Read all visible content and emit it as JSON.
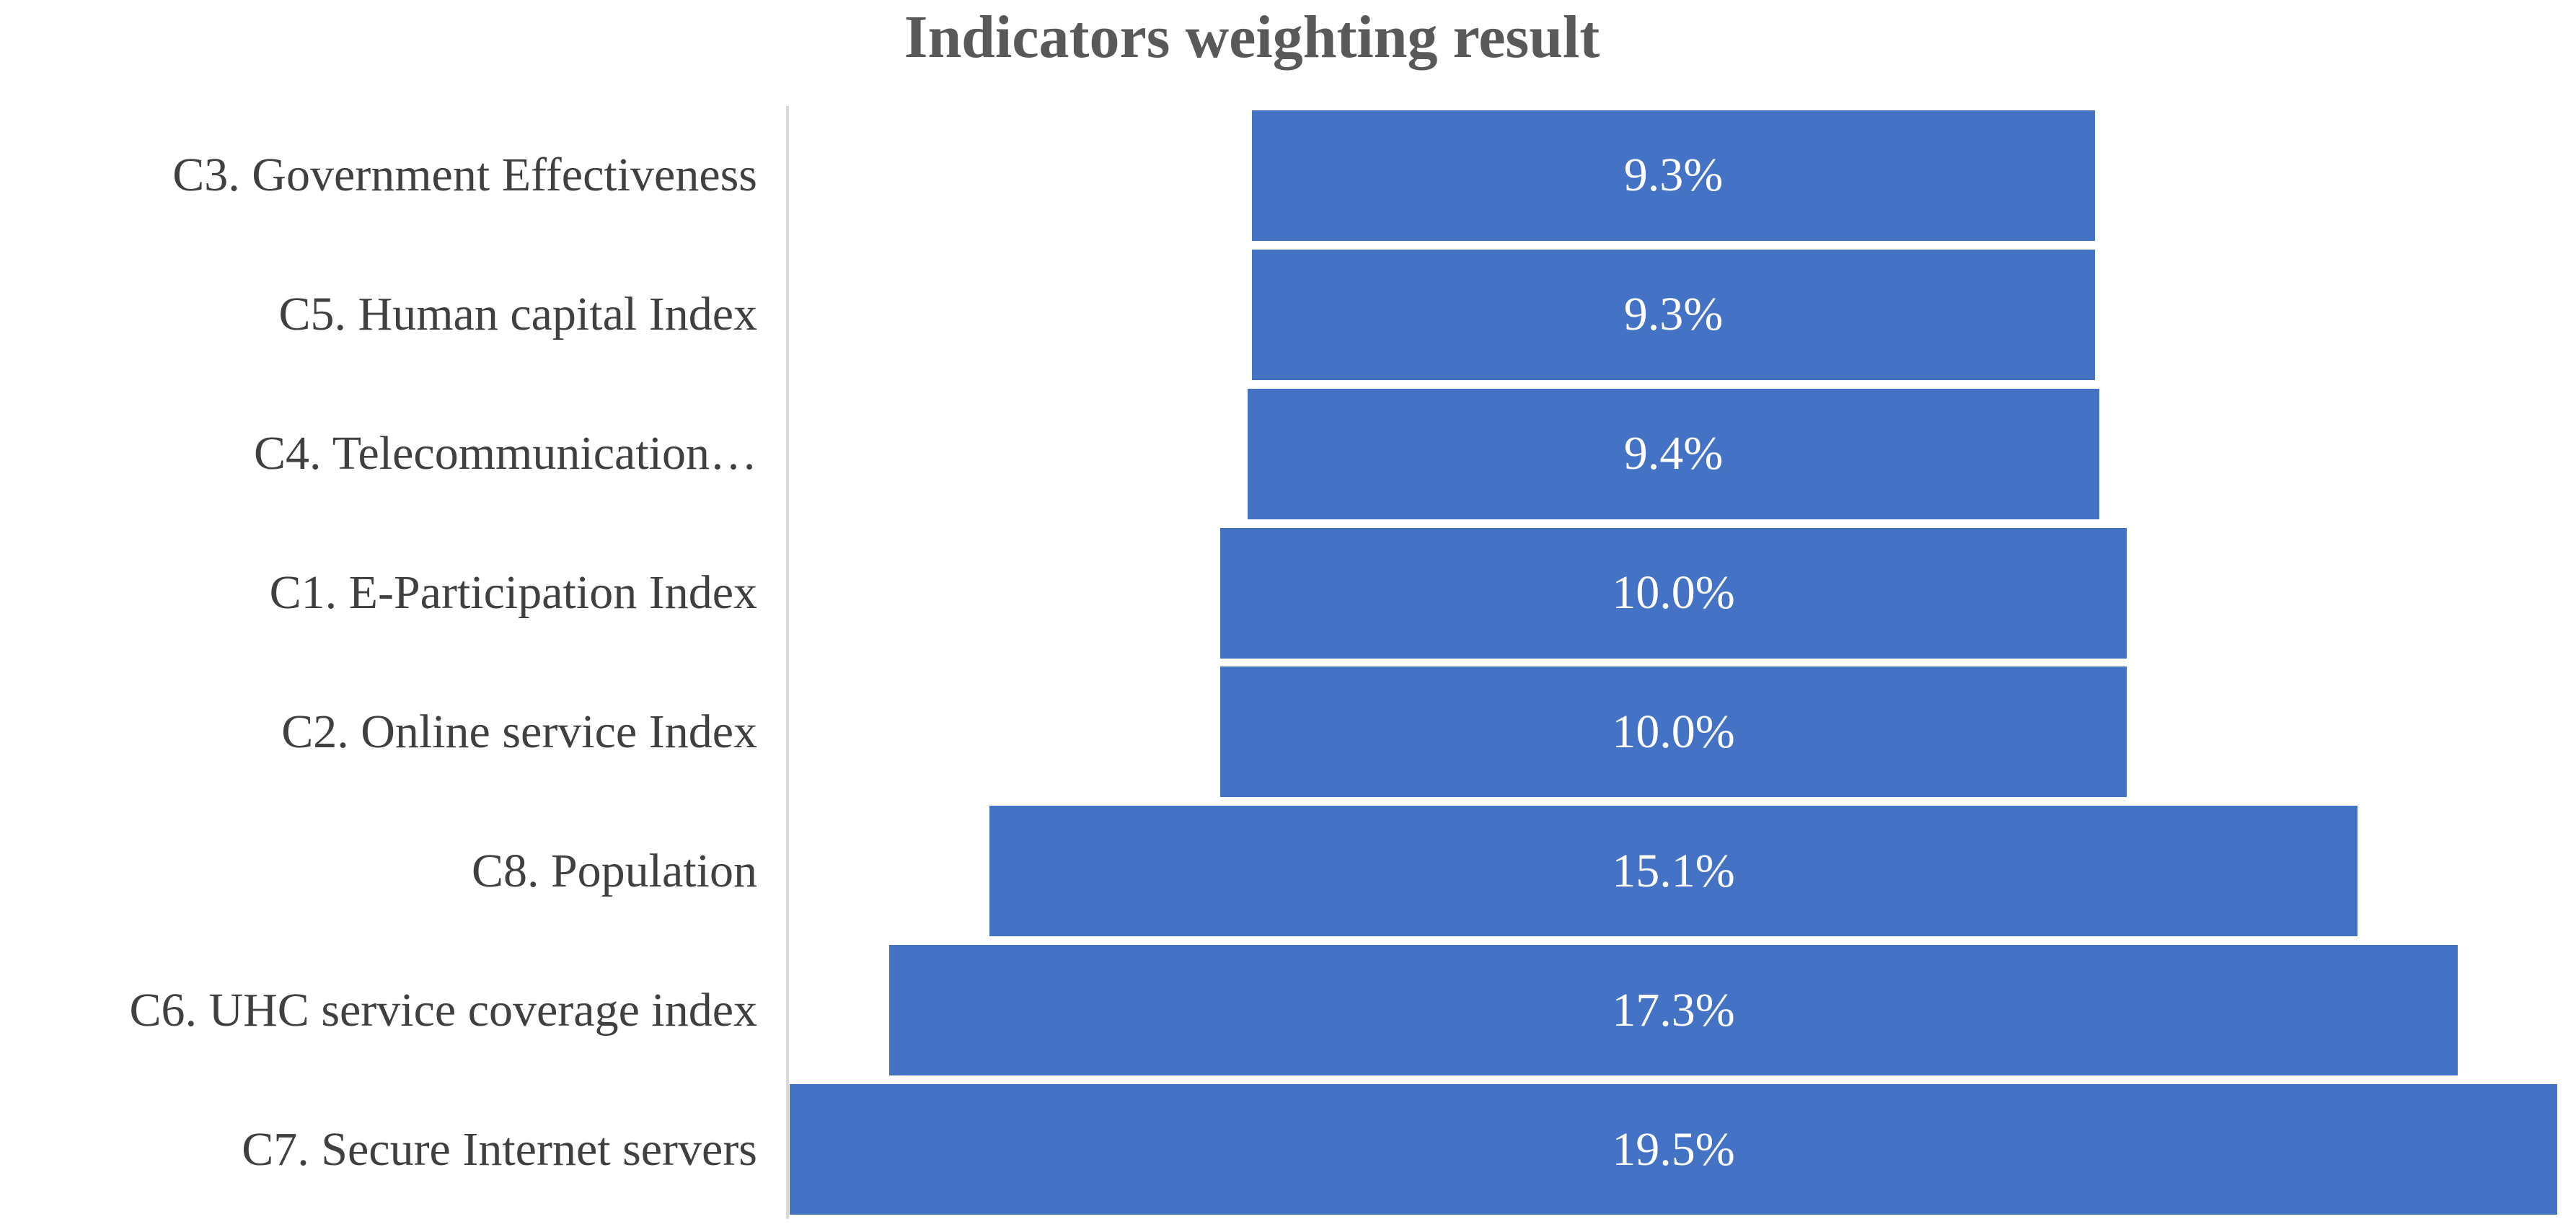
{
  "chart_data": {
    "type": "bar",
    "variant": "funnel-centered-horizontal",
    "title": "Indicators weighting result",
    "categories": [
      "C3. Government Effectiveness",
      "C5. Human capital Index",
      "C4. Telecommunication…",
      "C1. E-Participation Index",
      "C2. Online service Index",
      "C8. Population",
      "C6. UHC service coverage index",
      "C7. Secure Internet servers"
    ],
    "values": [
      9.3,
      9.3,
      9.4,
      10.0,
      10.0,
      15.1,
      17.3,
      19.5
    ],
    "value_labels": [
      "9.3%",
      "9.3%",
      "9.4%",
      "10.0%",
      "10.0%",
      "15.1%",
      "17.3%",
      "19.5%"
    ],
    "value_axis_max": 19.5,
    "legend_position": "none",
    "grid": false,
    "colors": {
      "bar_fill": "#4472C4",
      "value_label": "#FFFFFF",
      "category_label": "#404040",
      "title": "#595959",
      "axis_line": "#D9D9D9",
      "background": "#FFFFFF"
    }
  }
}
